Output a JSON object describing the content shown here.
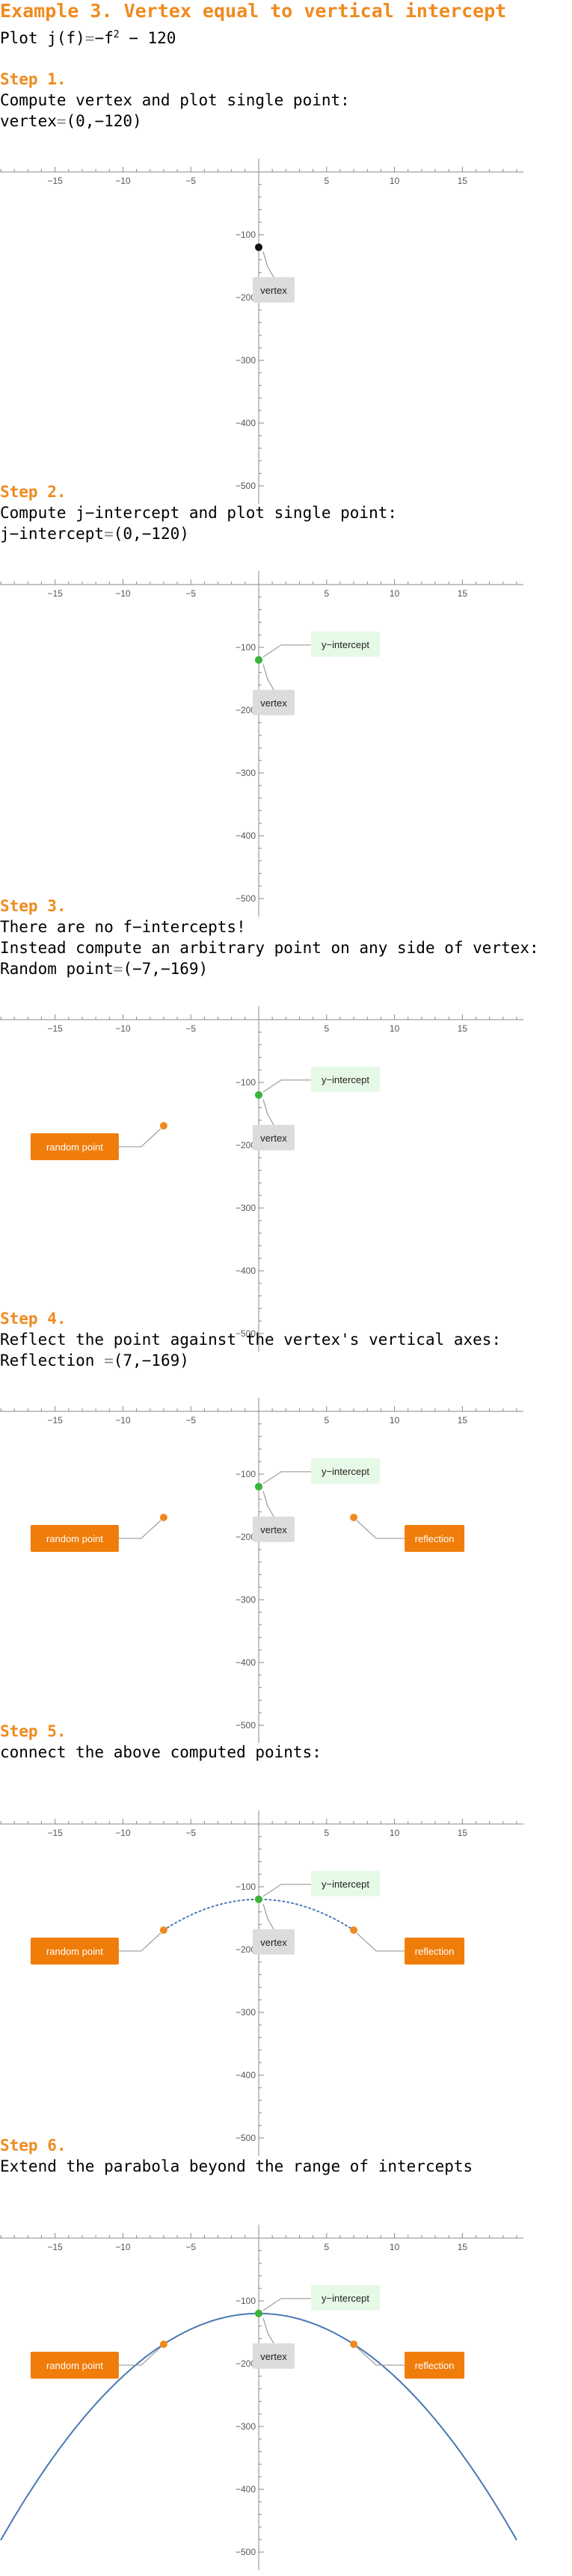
{
  "title": "Example 3. Vertex equal to vertical intercept",
  "intro": {
    "prefix": "Plot ",
    "func": "j(f)",
    "eq": "=",
    "rest": "−f",
    "exp": "2",
    "tail": " − 120"
  },
  "steps": [
    {
      "title": "Step 1.",
      "lines": [
        "Compute vertex and plot single point:"
      ],
      "value_label": "vertex",
      "value": "(0,−120)"
    },
    {
      "title": "Step 2.",
      "lines": [
        "Compute j−intercept and plot single point:"
      ],
      "value_label": "j−intercept",
      "value": "(0,−120)"
    },
    {
      "title": "Step 3.",
      "lines": [
        "There are no f−intercepts!",
        "Instead compute an arbitrary point on any side of vertex:"
      ],
      "value_label": "Random point",
      "value": "(−7,−169)"
    },
    {
      "title": "Step 4.",
      "lines": [
        "Reflect the point against the vertex's vertical axes:"
      ],
      "value_label": "Reflection ",
      "value": "(7,−169)"
    },
    {
      "title": "Step 5.",
      "lines": [
        "connect the above computed points:"
      ],
      "value_label": "",
      "value": ""
    },
    {
      "title": "Step 6.",
      "lines": [
        "Extend the parabola beyond the range of intercepts"
      ],
      "value_label": "",
      "value": ""
    }
  ],
  "labels": {
    "vertex": "vertex",
    "y_intercept": "y−intercept",
    "random_point": "random point",
    "reflection": "reflection"
  },
  "colors": {
    "accent": "#F08A1E",
    "vertex_dot": "#111111",
    "green_dot": "#3CB43C",
    "orange_dot": "#F08A1E",
    "curve": "#4A78B4",
    "vertex_label_bg": "#DCDCDC",
    "y_int_bg": "#E6F9E6",
    "orange_bg": "#F07D0A"
  },
  "chart_data": [
    {
      "type": "scatter",
      "function": "j(f) = -f^2 - 120",
      "x_ticks": [
        -15,
        -10,
        -5,
        5,
        10,
        15
      ],
      "y_ticks": [
        -100,
        -200,
        -300,
        -400,
        -500
      ],
      "xlim": [
        -19,
        19
      ],
      "ylim": [
        -520,
        0
      ],
      "points": [
        {
          "x": 0,
          "y": -120,
          "label": "vertex"
        }
      ]
    },
    {
      "type": "scatter",
      "x_ticks": [
        -15,
        -10,
        -5,
        5,
        10,
        15
      ],
      "y_ticks": [
        -100,
        -200,
        -300,
        -400,
        -500
      ],
      "xlim": [
        -19,
        19
      ],
      "ylim": [
        -520,
        0
      ],
      "points": [
        {
          "x": 0,
          "y": -120,
          "label": "vertex"
        },
        {
          "x": 0,
          "y": -120,
          "label": "y−intercept"
        }
      ]
    },
    {
      "type": "scatter",
      "x_ticks": [
        -15,
        -10,
        -5,
        5,
        10,
        15
      ],
      "y_ticks": [
        -100,
        -200,
        -300,
        -400,
        -500
      ],
      "xlim": [
        -19,
        19
      ],
      "ylim": [
        -520,
        0
      ],
      "points": [
        {
          "x": 0,
          "y": -120,
          "label": "vertex"
        },
        {
          "x": 0,
          "y": -120,
          "label": "y−intercept"
        },
        {
          "x": -7,
          "y": -169,
          "label": "random point"
        }
      ]
    },
    {
      "type": "scatter",
      "x_ticks": [
        -15,
        -10,
        -5,
        5,
        10,
        15
      ],
      "y_ticks": [
        -100,
        -200,
        -300,
        -400,
        -500
      ],
      "xlim": [
        -19,
        19
      ],
      "ylim": [
        -520,
        0
      ],
      "points": [
        {
          "x": 0,
          "y": -120,
          "label": "vertex"
        },
        {
          "x": 0,
          "y": -120,
          "label": "y−intercept"
        },
        {
          "x": -7,
          "y": -169,
          "label": "random point"
        },
        {
          "x": 7,
          "y": -169,
          "label": "reflection"
        }
      ]
    },
    {
      "type": "line",
      "style": "dotted",
      "x_ticks": [
        -15,
        -10,
        -5,
        5,
        10,
        15
      ],
      "y_ticks": [
        -100,
        -200,
        -300,
        -400,
        -500
      ],
      "xlim": [
        -19,
        19
      ],
      "ylim": [
        -520,
        0
      ],
      "curve_domain": [
        -7,
        7
      ],
      "points": [
        {
          "x": 0,
          "y": -120,
          "label": "vertex"
        },
        {
          "x": 0,
          "y": -120,
          "label": "y−intercept"
        },
        {
          "x": -7,
          "y": -169,
          "label": "random point"
        },
        {
          "x": 7,
          "y": -169,
          "label": "reflection"
        }
      ]
    },
    {
      "type": "line",
      "style": "solid",
      "x_ticks": [
        -15,
        -10,
        -5,
        5,
        10,
        15
      ],
      "y_ticks": [
        -100,
        -200,
        -300,
        -400,
        -500
      ],
      "xlim": [
        -19,
        19
      ],
      "ylim": [
        -520,
        0
      ],
      "curve_domain": [
        -19,
        19
      ],
      "points": [
        {
          "x": 0,
          "y": -120,
          "label": "vertex"
        },
        {
          "x": 0,
          "y": -120,
          "label": "y−intercept"
        },
        {
          "x": -7,
          "y": -169,
          "label": "random point"
        },
        {
          "x": 7,
          "y": -169,
          "label": "reflection"
        }
      ]
    }
  ]
}
